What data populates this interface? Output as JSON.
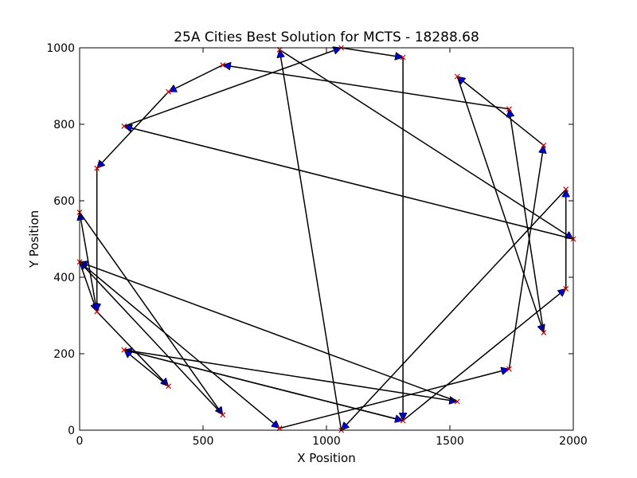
{
  "chart_data": {
    "type": "line",
    "title": "25A Cities Best Solution for MCTS - 18288.68",
    "xlabel": "X Position",
    "ylabel": "Y Position",
    "xlim": [
      0,
      2000
    ],
    "ylim": [
      0,
      1000
    ],
    "xticks": [
      0,
      500,
      1000,
      1500,
      2000
    ],
    "yticks": [
      0,
      200,
      400,
      600,
      800,
      1000
    ],
    "xtick_labels": [
      "0",
      "500",
      "1000",
      "1500",
      "2000"
    ],
    "ytick_labels": [
      "0",
      "200",
      "400",
      "600",
      "800",
      "1000"
    ],
    "grid": false,
    "colors": {
      "edge": "#000000",
      "arrow": "#0000cc",
      "city": "#cc0000"
    },
    "tour": [
      [
        1310,
        975
      ],
      [
        1310,
        25
      ],
      [
        180,
        210
      ],
      [
        1530,
        75
      ],
      [
        0,
        440
      ],
      [
        70,
        310
      ],
      [
        0,
        570
      ],
      [
        580,
        40
      ],
      [
        0,
        440
      ],
      [
        810,
        5
      ],
      [
        1740,
        160
      ],
      [
        1880,
        745
      ],
      [
        1530,
        925
      ],
      [
        1880,
        255
      ],
      [
        1740,
        840
      ],
      [
        580,
        955
      ],
      [
        360,
        885
      ],
      [
        70,
        685
      ],
      [
        70,
        310
      ],
      [
        360,
        115
      ],
      [
        180,
        210
      ],
      [
        1310,
        25
      ],
      [
        1970,
        370
      ],
      [
        1970,
        630
      ],
      [
        1060,
        0
      ],
      [
        810,
        995
      ],
      [
        2000,
        500
      ],
      [
        180,
        795
      ],
      [
        1060,
        1000
      ],
      [
        1310,
        975
      ]
    ]
  }
}
